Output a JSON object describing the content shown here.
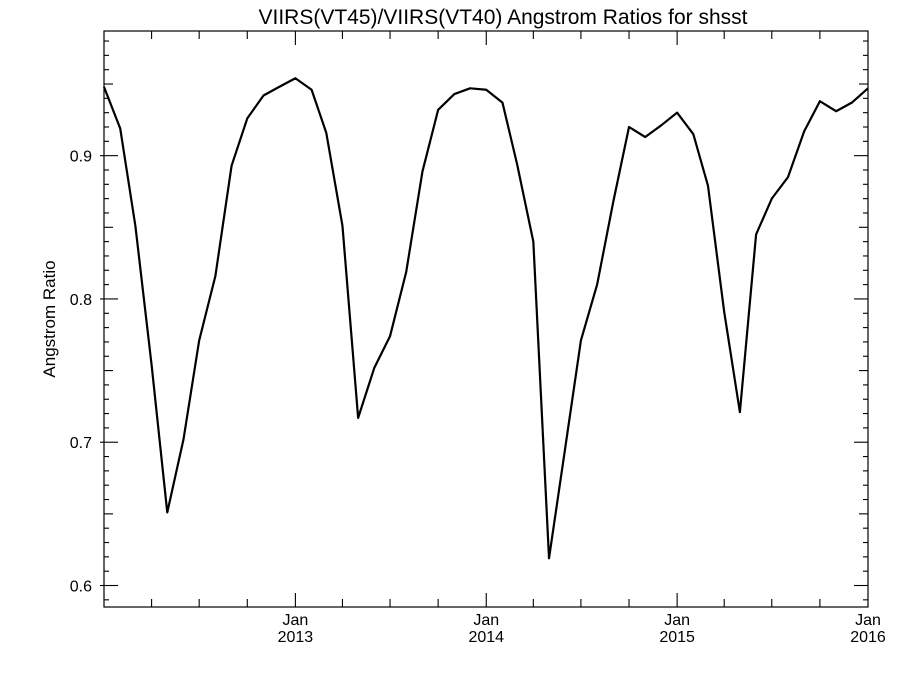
{
  "chart_data": {
    "type": "line",
    "title": "VIIRS(VT45)/VIIRS(VT40)  Angstrom Ratios for shsst",
    "xlabel": "",
    "ylabel": "Angstrom Ratio",
    "ylim": [
      0.585,
      0.987
    ],
    "xlim": [
      "2012-01-01",
      "2016-01-01"
    ],
    "x_ticks": [
      {
        "month": "Jan",
        "year": "2013",
        "date": "2013-01-01"
      },
      {
        "month": "Jan",
        "year": "2014",
        "date": "2014-01-01"
      },
      {
        "month": "Jan",
        "year": "2015",
        "date": "2015-01-01"
      },
      {
        "month": "Jan",
        "year": "2016",
        "date": "2016-01-01"
      }
    ],
    "y_ticks": [
      0.6,
      0.7,
      0.8,
      0.9
    ],
    "y_tick_labels": [
      "0.6",
      "0.7",
      "0.8",
      "0.9"
    ],
    "grid": false,
    "series": [
      {
        "x": [
          "2012-01-01",
          "2012-02-01",
          "2012-03-01",
          "2012-04-01",
          "2012-05-01",
          "2012-06-01",
          "2012-07-01",
          "2012-08-01",
          "2012-09-01",
          "2012-10-01",
          "2012-11-01",
          "2012-12-01",
          "2013-01-01",
          "2013-02-01",
          "2013-03-01",
          "2013-04-01",
          "2013-05-01",
          "2013-06-01",
          "2013-07-01",
          "2013-08-01",
          "2013-09-01",
          "2013-10-01",
          "2013-11-01",
          "2013-12-01",
          "2014-01-01",
          "2014-02-01",
          "2014-03-01",
          "2014-04-01",
          "2014-05-01",
          "2014-06-01",
          "2014-07-01",
          "2014-08-01",
          "2014-09-01",
          "2014-10-01",
          "2014-11-01",
          "2014-12-01",
          "2015-01-01",
          "2015-02-01",
          "2015-03-01",
          "2015-04-01",
          "2015-05-01",
          "2015-06-01",
          "2015-07-01",
          "2015-08-01",
          "2015-09-01",
          "2015-10-01",
          "2015-11-01",
          "2015-12-01",
          "2016-01-01"
        ],
        "values": [
          0.948,
          0.919,
          0.851,
          0.754,
          0.651,
          0.702,
          0.771,
          0.816,
          0.893,
          0.926,
          0.942,
          0.948,
          0.954,
          0.946,
          0.916,
          0.851,
          0.717,
          0.752,
          0.774,
          0.819,
          0.889,
          0.932,
          0.943,
          0.947,
          0.946,
          0.937,
          0.894,
          0.84,
          0.619,
          0.696,
          0.771,
          0.81,
          0.868,
          0.92,
          0.913,
          0.921,
          0.93,
          0.915,
          0.879,
          0.791,
          0.721,
          0.845,
          0.87,
          0.885,
          0.917,
          0.938,
          0.931,
          0.937,
          0.947
        ]
      }
    ]
  }
}
